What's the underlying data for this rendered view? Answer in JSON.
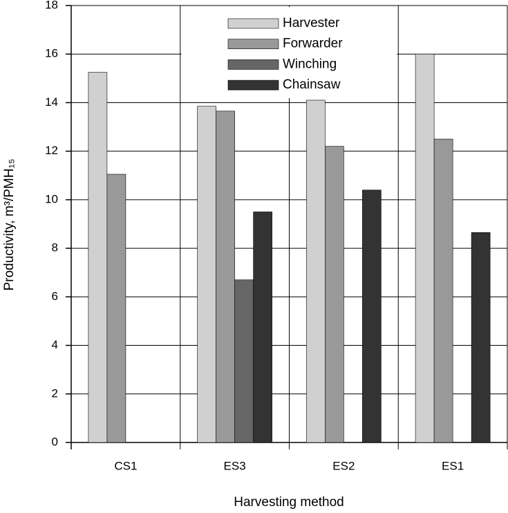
{
  "chart_data": {
    "type": "bar",
    "x_label": "Harvesting method",
    "y_label": "Productivity, m³/PMH₁₅",
    "categories": [
      "CS1",
      "ES3",
      "ES2",
      "ES1"
    ],
    "series": [
      {
        "name": "Harvester",
        "color": "#d0d0d0",
        "values": [
          15.25,
          13.85,
          14.1,
          16.0
        ]
      },
      {
        "name": "Forwarder",
        "color": "#999999",
        "values": [
          11.05,
          13.65,
          12.2,
          12.5
        ]
      },
      {
        "name": "Winching",
        "color": "#666666",
        "values": [
          null,
          6.7,
          null,
          null
        ]
      },
      {
        "name": "Chainsaw",
        "color": "#333333",
        "values": [
          null,
          9.5,
          10.4,
          8.65
        ]
      }
    ],
    "ylim": [
      0,
      18
    ],
    "yticks": [
      0,
      2,
      4,
      6,
      8,
      10,
      12,
      14,
      16,
      18
    ],
    "grid": true,
    "legend": "top"
  }
}
